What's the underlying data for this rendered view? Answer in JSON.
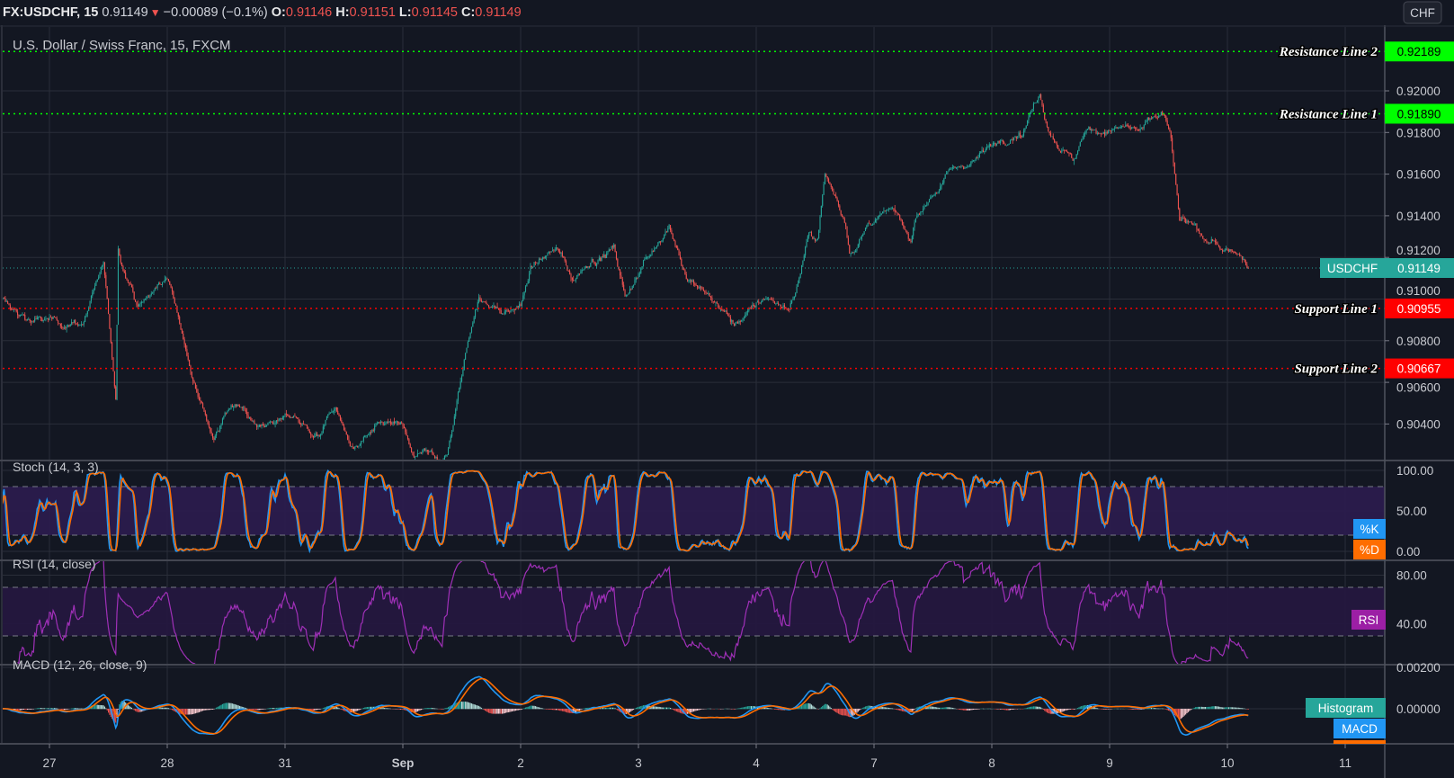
{
  "header": {
    "symbol": "FX:USDCHF, 15",
    "last": "0.91149",
    "direction_icon": "triangle-down",
    "change": "−0.00089 (−0.1%)",
    "o_label": "O:",
    "o": "0.91146",
    "h_label": "H:",
    "h": "0.91151",
    "l_label": "L:",
    "l": "0.91145",
    "c_label": "C:",
    "c": "0.91149"
  },
  "chart_title": "U.S. Dollar / Swiss Franc, 15, FXCM",
  "currency_badge": "CHF",
  "colors": {
    "background": "#131722",
    "up": "#26a69a",
    "down": "#ef5350",
    "resistance": "#00ff00",
    "support": "#ff0000",
    "stoch_k": "#2196f3",
    "stoch_d": "#ff6d00",
    "rsi": "#9c27b0",
    "macd": "#2196f3",
    "signal": "#ff6d00",
    "histogram": "#26a69a"
  },
  "x_ticks": [
    "27",
    "28",
    "31",
    "Sep",
    "2",
    "3",
    "4",
    "7",
    "8",
    "9",
    "10",
    "11"
  ],
  "chart_data": [
    {
      "type": "candlestick",
      "title": "U.S. Dollar / Swiss Franc, 15, FXCM",
      "interval": "15",
      "ylim": [
        0.90224,
        0.9218
      ],
      "y_ticks": [
        "0.92000",
        "0.91800",
        "0.91600",
        "0.91400",
        "0.91200",
        "0.91000",
        "0.90800",
        "0.90600",
        "0.90400"
      ],
      "grid": true,
      "price_path": [
        [
          "08-26 14:00",
          0.90991
        ],
        [
          "08-26 18:00",
          0.90924
        ],
        [
          "08-27 01:00",
          0.9088
        ],
        [
          "08-27 07:00",
          0.90902
        ],
        [
          "08-27 11:00",
          0.91147
        ],
        [
          "08-27 13:30",
          0.90524
        ],
        [
          "08-27 14:00",
          0.91236
        ],
        [
          "08-27 18:00",
          0.90969
        ],
        [
          "08-28 00:00",
          0.91102
        ],
        [
          "08-28 04:00",
          0.90747
        ],
        [
          "08-28 09:30",
          0.90347
        ],
        [
          "08-28 14:15",
          0.90524
        ],
        [
          "08-28 19:00",
          0.90391
        ],
        [
          "08-31 01:00",
          0.90436
        ],
        [
          "08-31 06:30",
          0.90347
        ],
        [
          "08-31 10:15",
          0.9048
        ],
        [
          "08-31 14:00",
          0.90258
        ],
        [
          "08-31 19:45",
          0.90391
        ],
        [
          "08-31 23:30",
          0.90391
        ],
        [
          "09-01 02:15",
          0.90236
        ],
        [
          "09-01 09:00",
          0.90258
        ],
        [
          "09-01 12:45",
          0.90747
        ],
        [
          "09-01 15:30",
          0.91013
        ],
        [
          "09-01 20:15",
          0.90924
        ],
        [
          "09-02 00:00",
          0.90969
        ],
        [
          "09-02 02:00",
          0.91147
        ],
        [
          "09-02 07:30",
          0.91236
        ],
        [
          "09-02 10:30",
          0.91102
        ],
        [
          "09-02 14:15",
          0.91191
        ],
        [
          "09-02 19:00",
          0.91236
        ],
        [
          "09-02 21:15",
          0.91013
        ],
        [
          "09-03 02:30",
          0.91236
        ],
        [
          "09-03 06:15",
          0.91369
        ],
        [
          "09-03 10:00",
          0.91102
        ],
        [
          "09-03 14:45",
          0.91013
        ],
        [
          "09-03 19:30",
          0.9088
        ],
        [
          "09-04 01:15",
          0.91013
        ],
        [
          "09-04 06:45",
          0.90969
        ],
        [
          "09-04 08:45",
          0.91102
        ],
        [
          "09-04 10:30",
          0.9128
        ],
        [
          "09-04 12:30",
          0.9128
        ],
        [
          "09-04 14:00",
          0.91591
        ],
        [
          "09-04 18:15",
          0.91369
        ],
        [
          "09-04 19:00",
          0.91236
        ],
        [
          "09-07 00:00",
          0.91369
        ],
        [
          "09-07 03:45",
          0.91413
        ],
        [
          "09-07 07:30",
          0.9128
        ],
        [
          "09-07 08:30",
          0.91413
        ],
        [
          "09-07 11:15",
          0.91502
        ],
        [
          "09-07 17:00",
          0.91636
        ],
        [
          "09-07 20:45",
          0.9168
        ],
        [
          "09-08 01:15",
          0.91769
        ],
        [
          "09-08 06:00",
          0.91813
        ],
        [
          "09-08 09:45",
          0.91991
        ],
        [
          "09-08 11:45",
          0.91813
        ],
        [
          "09-08 16:30",
          0.91658
        ],
        [
          "09-08 19:15",
          0.91791
        ],
        [
          "09-09 01:00",
          0.91836
        ],
        [
          "09-09 06:45",
          0.91813
        ],
        [
          "09-09 10:30",
          0.9188
        ],
        [
          "09-09 12:30",
          0.91769
        ],
        [
          "09-09 14:15",
          0.91369
        ],
        [
          "09-09 18:00",
          0.91324
        ],
        [
          "09-09 21:45",
          0.91258
        ],
        [
          "09-10 01:30",
          0.91191
        ],
        [
          "09-10 04:15",
          0.91149
        ]
      ],
      "levels": [
        {
          "name": "Resistance Line 2",
          "value": "0.92189",
          "kind": "resistance"
        },
        {
          "name": "Resistance Line 1",
          "value": "0.91890",
          "kind": "resistance"
        },
        {
          "name": "Support Line 1",
          "value": "0.90955",
          "kind": "support"
        },
        {
          "name": "Support Line 2",
          "value": "0.90667",
          "kind": "support"
        }
      ],
      "last_price": {
        "label": "USDCHF",
        "value": "0.91149"
      }
    },
    {
      "type": "line",
      "title": "Stoch (14, 3, 3)",
      "ylim": [
        0,
        100
      ],
      "bands": [
        20,
        80
      ],
      "y_ticks": [
        "100.00",
        "50.00",
        "0.00"
      ],
      "series": [
        {
          "name": "%K"
        },
        {
          "name": "%D"
        }
      ]
    },
    {
      "type": "line",
      "title": "RSI (14, close)",
      "bands": [
        30,
        70
      ],
      "y_ticks": [
        "80.00",
        "40.00"
      ],
      "series": [
        {
          "name": "RSI"
        }
      ]
    },
    {
      "type": "line",
      "title": "MACD (12, 26, close, 9)",
      "y_ticks": [
        "0.00200",
        "0.00000"
      ],
      "series": [
        {
          "name": "Histogram"
        },
        {
          "name": "MACD"
        },
        {
          "name": ""
        }
      ]
    }
  ]
}
